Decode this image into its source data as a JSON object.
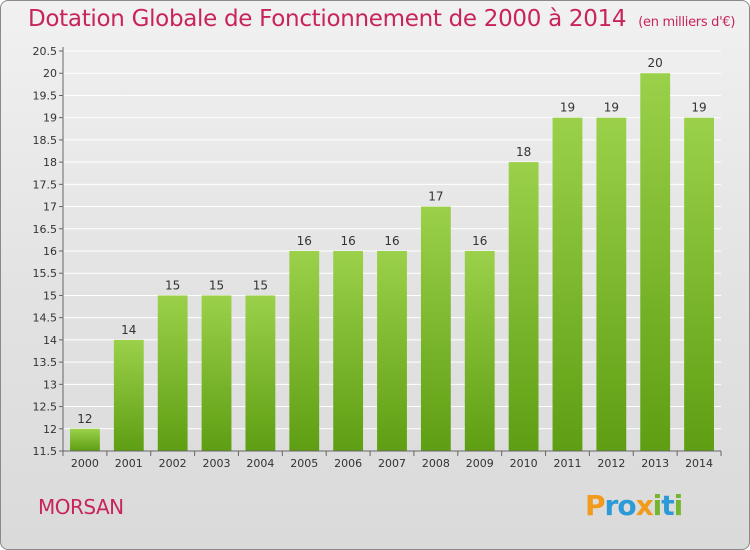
{
  "title": "Dotation Globale de Fonctionnement de 2000 à 2014",
  "unit": "(en milliers d'€)",
  "commune": "MORSAN",
  "logo": {
    "text": "Proxiti",
    "letters": [
      {
        "ch": "P",
        "color": "#f29a1c"
      },
      {
        "ch": "r",
        "color": "#2c9ad6"
      },
      {
        "ch": "o",
        "color": "#2c9ad6"
      },
      {
        "ch": "x",
        "color": "#f29a1c"
      },
      {
        "ch": "i",
        "color": "#74b62e"
      },
      {
        "ch": "t",
        "color": "#2c9ad6"
      },
      {
        "ch": "i",
        "color": "#74b62e"
      }
    ]
  },
  "colors": {
    "title": "#c8245a",
    "bar_top": "#9bd14a",
    "bar_bottom": "#5e9e12",
    "grid": "#ffffff"
  },
  "chart_data": {
    "type": "bar",
    "categories": [
      "2000",
      "2001",
      "2002",
      "2003",
      "2004",
      "2005",
      "2006",
      "2007",
      "2008",
      "2009",
      "2010",
      "2011",
      "2012",
      "2013",
      "2014"
    ],
    "values": [
      12,
      14,
      15,
      15,
      15,
      16,
      16,
      16,
      17,
      16,
      18,
      19,
      19,
      20,
      19
    ],
    "value_labels": [
      "12",
      "14",
      "15",
      "15",
      "15",
      "16",
      "16",
      "16",
      "17",
      "16",
      "18",
      "19",
      "19",
      "20",
      "19"
    ],
    "ylim": [
      11.5,
      20.5
    ],
    "yticks": [
      "11.5",
      "12",
      "12.5",
      "13",
      "13.5",
      "14",
      "14.5",
      "15",
      "15.5",
      "16",
      "16.5",
      "17",
      "17.5",
      "18",
      "18.5",
      "19",
      "19.5",
      "20",
      "20.5"
    ],
    "grid": true
  }
}
